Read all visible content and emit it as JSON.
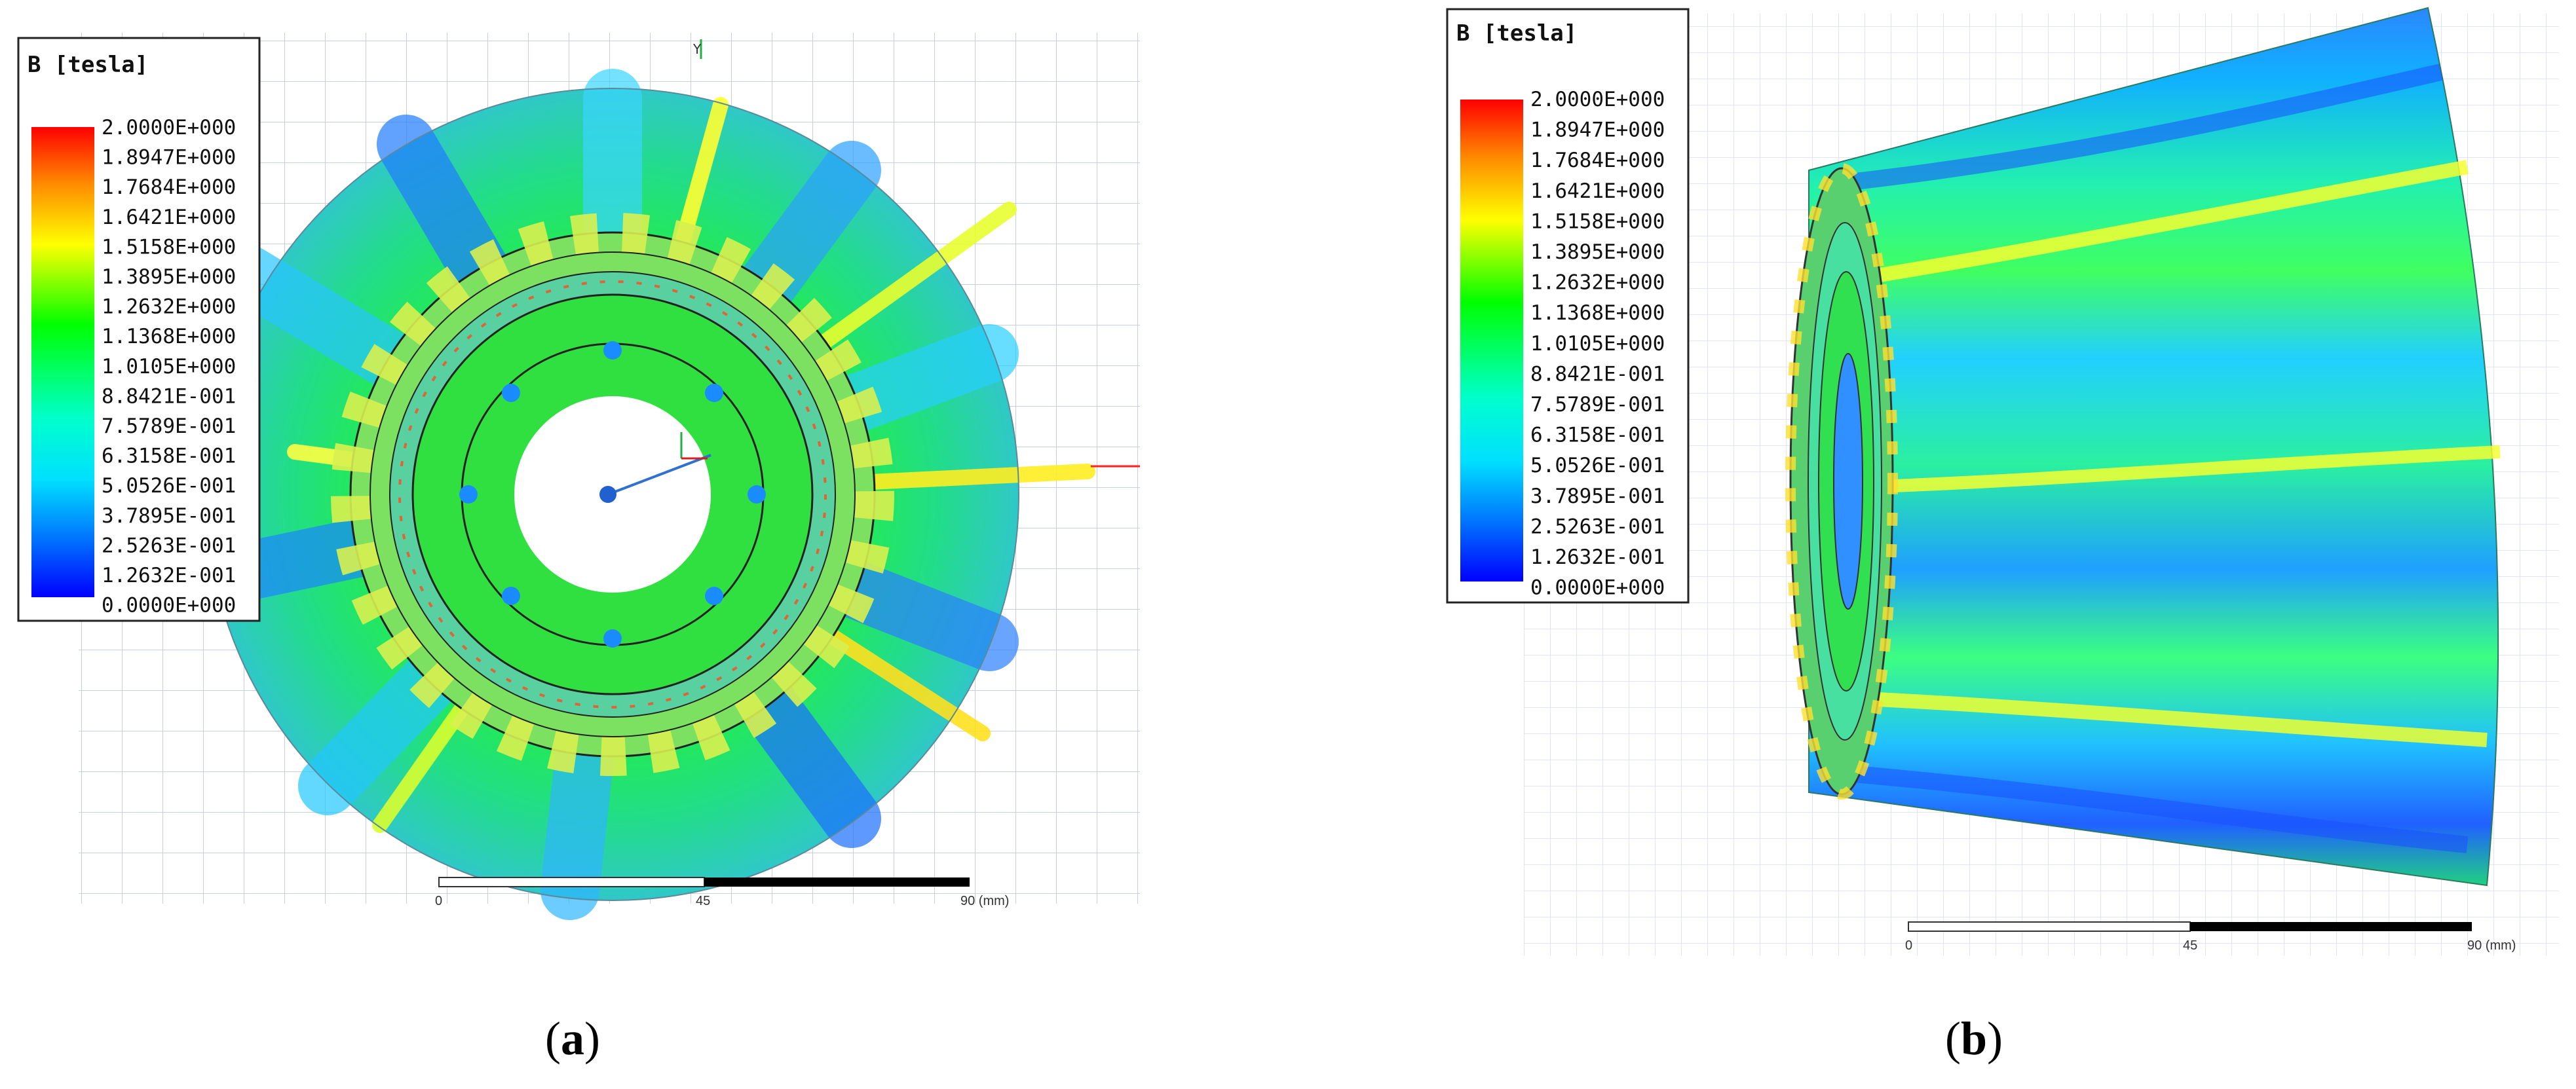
{
  "legend": {
    "title": "B [tesla]",
    "values": [
      "2.0000E+000",
      "1.8947E+000",
      "1.7684E+000",
      "1.6421E+000",
      "1.5158E+000",
      "1.3895E+000",
      "1.2632E+000",
      "1.1368E+000",
      "1.0105E+000",
      "8.8421E-001",
      "7.5789E-001",
      "6.3158E-001",
      "5.0526E-001",
      "3.7895E-001",
      "2.5263E-001",
      "1.2632E-001",
      "0.0000E+000"
    ],
    "colors": [
      "#ff0000",
      "#ff5a00",
      "#ff9a00",
      "#ffd200",
      "#ffff00",
      "#c8ff00",
      "#5aff00",
      "#00ff00",
      "#00ff5a",
      "#00ff9a",
      "#00ffd2",
      "#00ffff",
      "#00c8ff",
      "#0096ff",
      "#0064ff",
      "#0032ff",
      "#0000ff"
    ]
  },
  "scale_bar": {
    "ticks": [
      "0",
      "45",
      "90 (mm)"
    ]
  },
  "axis_label_y": "Y",
  "captions": {
    "a_open": "(",
    "a": "a",
    "a_close": ")",
    "b_open": "(",
    "b": "b",
    "b_close": ")"
  }
}
